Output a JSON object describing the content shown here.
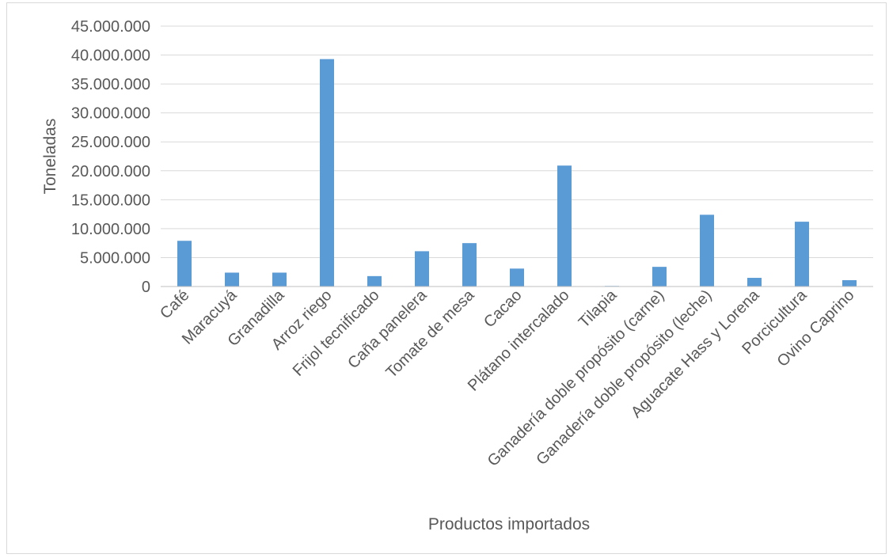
{
  "chart_data": {
    "type": "bar",
    "title": "",
    "xlabel": "Productos importados",
    "ylabel": "Toneladas",
    "ylim": [
      0,
      45000000
    ],
    "yticks": [
      0,
      5000000,
      10000000,
      15000000,
      20000000,
      25000000,
      30000000,
      35000000,
      40000000,
      45000000
    ],
    "ytick_labels": [
      "0",
      "5.000.000",
      "10.000.000",
      "15.000.000",
      "20.000.000",
      "25.000.000",
      "30.000.000",
      "35.000.000",
      "40.000.000",
      "45.000.000"
    ],
    "grid": true,
    "legend": "none",
    "bar_color": "#5b9bd5",
    "categories": [
      "Café",
      "Maracuyá",
      "Granadilla",
      "Arroz riego",
      "Frijol tecnificado",
      "Caña panelera",
      "Tomate de mesa",
      "Cacao",
      "Plátano intercalado",
      "Tilapia",
      "Ganadería doble propósito (carne)",
      "Ganadería doble propósito (leche)",
      "Aguacate Hass y Lorena",
      "Porcicultura",
      "Ovino Caprino"
    ],
    "values": [
      7900000,
      2400000,
      2400000,
      39300000,
      1800000,
      6100000,
      7500000,
      3100000,
      20900000,
      100000,
      3400000,
      12400000,
      1500000,
      11200000,
      1100000
    ]
  }
}
